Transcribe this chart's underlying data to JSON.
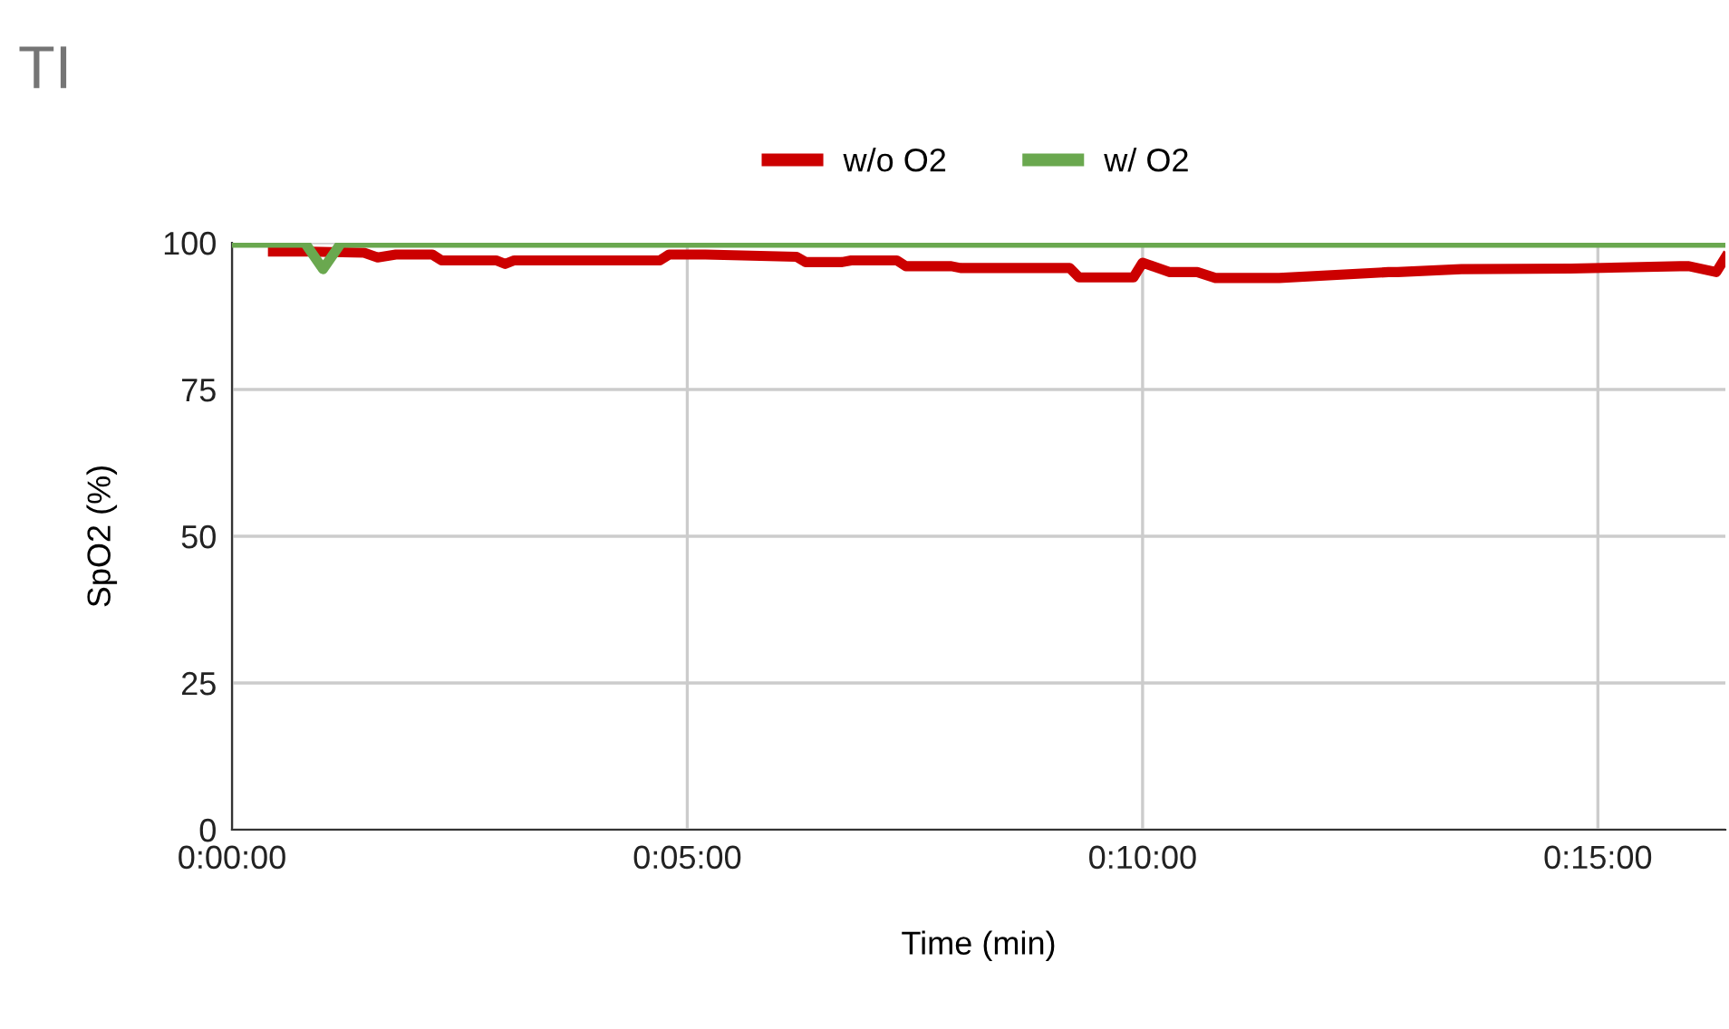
{
  "chart_data": {
    "type": "line",
    "title": "TI",
    "xlabel": "Time (min)",
    "ylabel": "SpO2 (%)",
    "xlim": [
      0,
      16.4
    ],
    "xticks": [
      {
        "value": 0,
        "label": "0:00:00"
      },
      {
        "value": 5,
        "label": "0:05:00"
      },
      {
        "value": 10,
        "label": "0:10:00"
      },
      {
        "value": 15,
        "label": "0:15:00"
      }
    ],
    "ylim": [
      0,
      100
    ],
    "yticks": [
      0,
      25,
      50,
      75,
      100
    ],
    "grid": true,
    "legend": "top",
    "marker": "none",
    "line_style": "solid",
    "series": [
      {
        "name": "w/o O2",
        "color": "#cc0000",
        "x": [
          0.45,
          0.85,
          1.45,
          1.6,
          1.8,
          2.2,
          2.3,
          2.9,
          3.0,
          3.1,
          4.7,
          4.8,
          5.2,
          6.2,
          6.3,
          6.7,
          6.8,
          7.3,
          7.4,
          7.9,
          8.0,
          9.2,
          9.3,
          9.9,
          10.0,
          10.3,
          10.6,
          10.8,
          11.0,
          11.1,
          11.5,
          12.7,
          12.8,
          13.5,
          14.7,
          15.9,
          16.0,
          16.3,
          16.4
        ],
        "values": [
          98.5,
          98.5,
          98.3,
          97.5,
          98,
          98,
          97,
          97,
          96.4,
          97,
          97,
          98,
          98,
          97.6,
          96.7,
          96.7,
          97,
          97,
          96,
          96,
          95.7,
          95.7,
          94.1,
          94.1,
          96.6,
          95,
          95,
          94,
          94,
          94,
          94,
          95,
          95,
          95.5,
          95.6,
          96,
          96,
          95,
          97.5
        ]
      },
      {
        "name": "w/ O2",
        "color": "#6aa84f",
        "x": [
          0,
          0.8,
          1.0,
          1.2,
          16.4
        ],
        "values": [
          100,
          100,
          95.5,
          100,
          100
        ]
      }
    ]
  }
}
